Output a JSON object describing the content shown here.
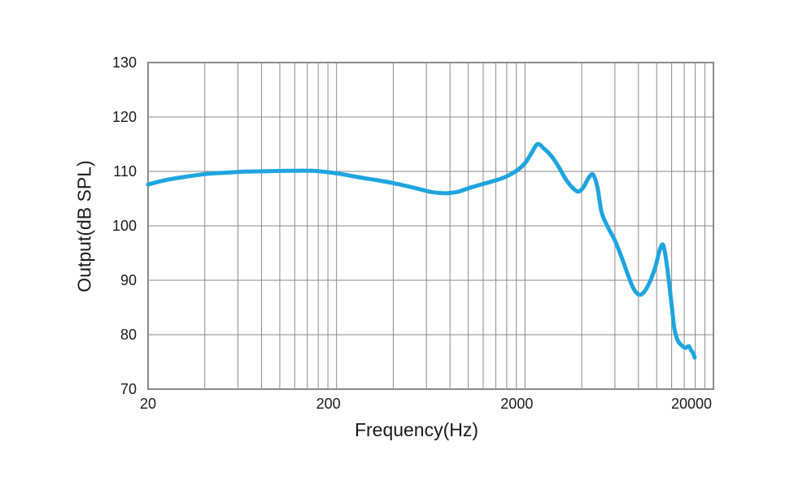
{
  "chart_data": {
    "type": "line",
    "title": "",
    "xlabel": "Frequency(Hz)",
    "ylabel": "Output(dB SPL)",
    "x_scale": "log",
    "xlim": [
      20,
      20000
    ],
    "ylim": [
      70,
      130
    ],
    "grid": true,
    "legend": "none",
    "x_tick_labels": [
      "20",
      "200",
      "2000",
      "20000"
    ],
    "x_tick_values": [
      20,
      200,
      2000,
      20000
    ],
    "x_gridlines": [
      20,
      40,
      60,
      80,
      100,
      120,
      140,
      160,
      180,
      200,
      400,
      600,
      800,
      1000,
      1200,
      1400,
      1600,
      1800,
      2000,
      4000,
      6000,
      8000,
      10000,
      12000,
      14000,
      16000,
      18000,
      20000
    ],
    "y_tick_labels": [
      "70",
      "80",
      "90",
      "100",
      "110",
      "120",
      "130"
    ],
    "y_tick_values": [
      70,
      80,
      90,
      100,
      110,
      120,
      130
    ],
    "colors": {
      "curve": "#1FA5DF",
      "grid": "#8a8a8a",
      "border": "#8a8a8a",
      "text": "#1a1a1a",
      "background": "#ffffff"
    },
    "series": [
      {
        "name": "frequency-response",
        "color": "#1FA5DF",
        "points": [
          [
            20,
            107.6
          ],
          [
            24,
            108.3
          ],
          [
            30,
            108.9
          ],
          [
            40,
            109.5
          ],
          [
            50,
            109.75
          ],
          [
            65,
            109.95
          ],
          [
            85,
            110.05
          ],
          [
            110,
            110.1
          ],
          [
            150,
            110.1
          ],
          [
            200,
            109.65
          ],
          [
            260,
            108.95
          ],
          [
            320,
            108.45
          ],
          [
            400,
            107.85
          ],
          [
            500,
            107.1
          ],
          [
            620,
            106.3
          ],
          [
            700,
            106.05
          ],
          [
            780,
            106.0
          ],
          [
            880,
            106.25
          ],
          [
            1000,
            106.9
          ],
          [
            1200,
            107.7
          ],
          [
            1500,
            108.7
          ],
          [
            1800,
            110.1
          ],
          [
            2000,
            111.5
          ],
          [
            2150,
            113.2
          ],
          [
            2330,
            115.0
          ],
          [
            2520,
            114.2
          ],
          [
            2750,
            112.9
          ],
          [
            3000,
            111.0
          ],
          [
            3300,
            108.5
          ],
          [
            3600,
            106.9
          ],
          [
            3850,
            106.3
          ],
          [
            4100,
            107.2
          ],
          [
            4350,
            108.8
          ],
          [
            4600,
            109.4
          ],
          [
            4850,
            107.0
          ],
          [
            5100,
            102.5
          ],
          [
            5500,
            99.8
          ],
          [
            6000,
            97.3
          ],
          [
            6500,
            94.3
          ],
          [
            7000,
            91.2
          ],
          [
            7500,
            88.6
          ],
          [
            8000,
            87.4
          ],
          [
            8500,
            87.7
          ],
          [
            9100,
            89.4
          ],
          [
            9800,
            92.3
          ],
          [
            10300,
            95.2
          ],
          [
            10700,
            96.6
          ],
          [
            11000,
            95.5
          ],
          [
            11400,
            92.0
          ],
          [
            11900,
            86.5
          ],
          [
            12400,
            81.2
          ],
          [
            12900,
            79.0
          ],
          [
            13500,
            78.1
          ],
          [
            14200,
            77.6
          ],
          [
            14800,
            77.9
          ],
          [
            15200,
            77.2
          ],
          [
            15600,
            76.6
          ],
          [
            15900,
            75.8
          ]
        ]
      }
    ]
  }
}
